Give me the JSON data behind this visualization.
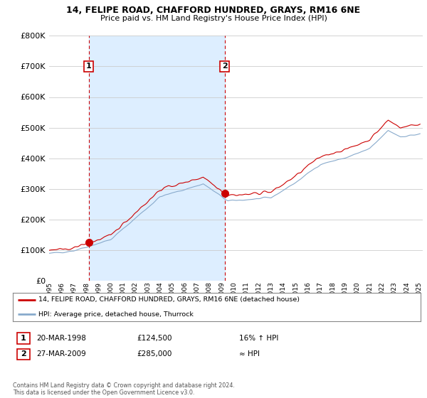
{
  "title": "14, FELIPE ROAD, CHAFFORD HUNDRED, GRAYS, RM16 6NE",
  "subtitle": "Price paid vs. HM Land Registry's House Price Index (HPI)",
  "ylim": [
    0,
    800000
  ],
  "yticks": [
    0,
    100000,
    200000,
    300000,
    400000,
    500000,
    600000,
    700000,
    800000
  ],
  "sale1": {
    "date_num": 1998.22,
    "price": 124500,
    "label": "1"
  },
  "sale2": {
    "date_num": 2009.23,
    "price": 285000,
    "label": "2"
  },
  "legend_line1": "14, FELIPE ROAD, CHAFFORD HUNDRED, GRAYS, RM16 6NE (detached house)",
  "legend_line2": "HPI: Average price, detached house, Thurrock",
  "annotation1_date": "20-MAR-1998",
  "annotation1_price": "£124,500",
  "annotation1_hpi": "16% ↑ HPI",
  "annotation2_date": "27-MAR-2009",
  "annotation2_price": "£285,000",
  "annotation2_hpi": "≈ HPI",
  "footnote": "Contains HM Land Registry data © Crown copyright and database right 2024.\nThis data is licensed under the Open Government Licence v3.0.",
  "red_color": "#cc0000",
  "blue_color": "#88aacc",
  "fill_color": "#ddeeff",
  "dashed_vline_color": "#cc0000",
  "background_color": "#ffffff",
  "grid_color": "#cccccc"
}
